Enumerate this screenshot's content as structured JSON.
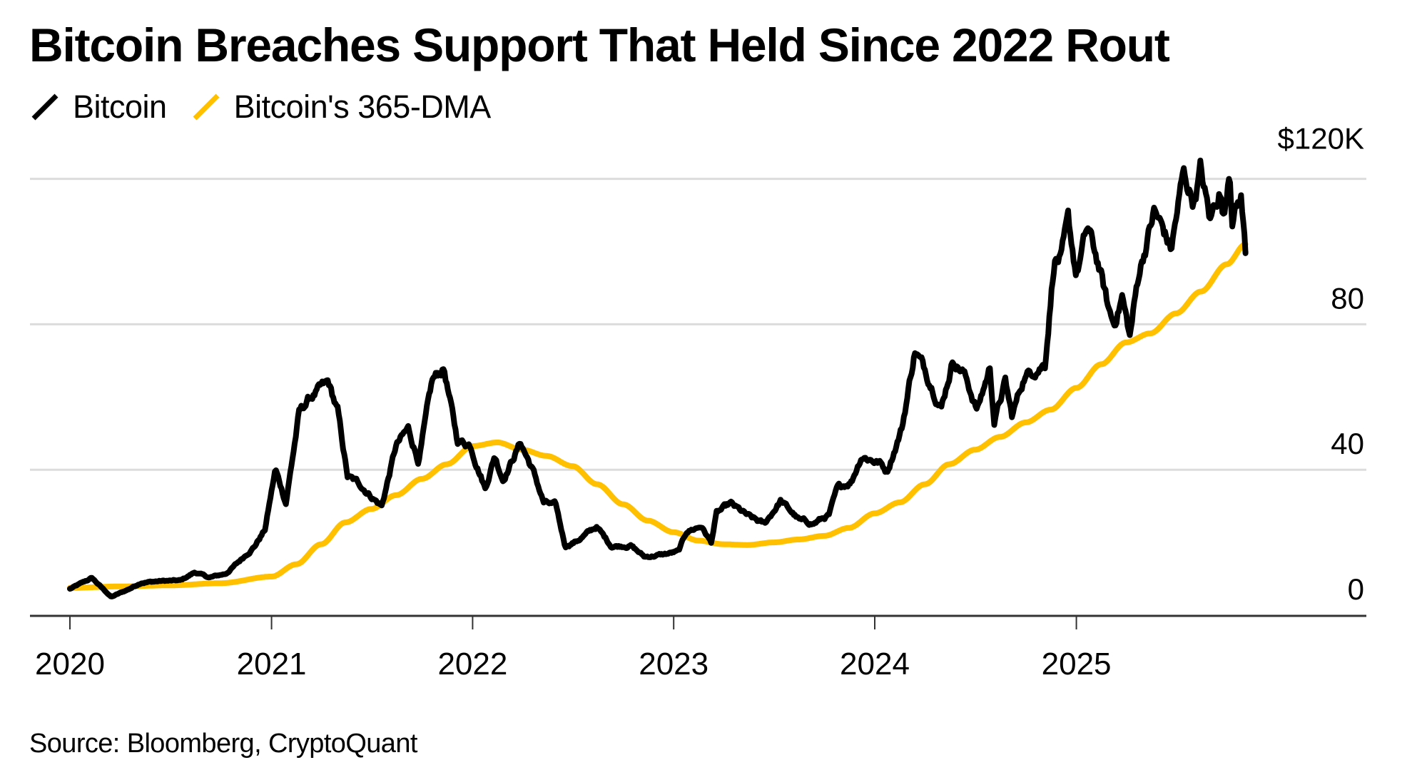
{
  "chart_data": {
    "type": "line",
    "title": "Bitcoin Breaches Support That Held Since 2022 Rout",
    "source": "Source: Bloomberg, CryptoQuant",
    "xlabel": "",
    "ylabel": "",
    "x_ticks": [
      "2020",
      "2021",
      "2022",
      "2023",
      "2024",
      "2025"
    ],
    "y_ticks": [
      {
        "value": 0,
        "label": "0"
      },
      {
        "value": 40,
        "label": "40"
      },
      {
        "value": 80,
        "label": "80"
      },
      {
        "value": 120,
        "label": "$120K"
      }
    ],
    "ylim": [
      0,
      120
    ],
    "y_unit": "thousand USD",
    "xlim": [
      "2020-01-01",
      "2026-03-01"
    ],
    "grid": "horizontal",
    "legend_position": "top-left",
    "series": [
      {
        "name": "Bitcoin",
        "color": "#000000",
        "x": [
          "2020-01-01",
          "2020-02-10",
          "2020-03-16",
          "2020-04-15",
          "2020-05-10",
          "2020-06-15",
          "2020-07-20",
          "2020-08-15",
          "2020-09-10",
          "2020-10-10",
          "2020-11-05",
          "2020-12-01",
          "2020-12-20",
          "2021-01-08",
          "2021-01-27",
          "2021-02-20",
          "2021-03-13",
          "2021-04-14",
          "2021-05-01",
          "2021-05-19",
          "2021-06-10",
          "2021-07-20",
          "2021-08-15",
          "2021-09-06",
          "2021-09-25",
          "2021-10-20",
          "2021-11-10",
          "2021-12-04",
          "2021-12-28",
          "2022-01-24",
          "2022-02-10",
          "2022-02-25",
          "2022-03-29",
          "2022-04-20",
          "2022-05-10",
          "2022-06-01",
          "2022-06-18",
          "2022-07-10",
          "2022-08-14",
          "2022-09-10",
          "2022-10-15",
          "2022-11-09",
          "2022-12-15",
          "2023-01-10",
          "2023-01-25",
          "2023-02-20",
          "2023-03-10",
          "2023-03-20",
          "2023-04-14",
          "2023-05-20",
          "2023-06-15",
          "2023-07-14",
          "2023-08-18",
          "2023-09-11",
          "2023-10-10",
          "2023-10-25",
          "2023-11-20",
          "2023-12-08",
          "2024-01-10",
          "2024-01-23",
          "2024-02-20",
          "2024-03-14",
          "2024-04-15",
          "2024-05-01",
          "2024-05-22",
          "2024-06-10",
          "2024-07-05",
          "2024-07-28",
          "2024-08-05",
          "2024-08-25",
          "2024-09-06",
          "2024-09-28",
          "2024-10-20",
          "2024-11-05",
          "2024-11-22",
          "2024-12-05",
          "2024-12-17",
          "2025-01-01",
          "2025-01-21",
          "2025-02-10",
          "2025-02-28",
          "2025-03-10",
          "2025-03-25",
          "2025-04-08",
          "2025-04-25",
          "2025-05-22",
          "2025-06-10",
          "2025-06-22",
          "2025-07-14",
          "2025-08-02",
          "2025-08-14",
          "2025-09-01",
          "2025-09-18",
          "2025-09-26",
          "2025-10-06",
          "2025-10-11",
          "2025-10-27",
          "2025-11-04"
        ],
        "values": [
          7.2,
          10.2,
          5.0,
          7.0,
          9.0,
          9.4,
          9.5,
          11.8,
          10.3,
          11.4,
          15.0,
          19.0,
          23.5,
          40.0,
          31.0,
          55.5,
          60.0,
          63.5,
          56.0,
          38.0,
          36.0,
          30.0,
          46.5,
          51.0,
          42.5,
          64.0,
          68.0,
          48.0,
          47.0,
          35.0,
          44.0,
          37.5,
          47.5,
          40.0,
          31.0,
          30.0,
          19.0,
          20.5,
          24.3,
          19.0,
          19.2,
          16.0,
          16.7,
          17.5,
          23.0,
          24.5,
          20.0,
          28.0,
          30.5,
          26.8,
          25.0,
          31.5,
          26.0,
          25.2,
          27.5,
          34.5,
          37.0,
          44.0,
          42.0,
          39.5,
          52.0,
          73.0,
          63.0,
          57.5,
          70.5,
          67.0,
          56.5,
          68.0,
          53.5,
          64.0,
          54.5,
          65.5,
          68.0,
          69.5,
          98.5,
          98.0,
          107.0,
          93.5,
          106.0,
          96.5,
          84.0,
          80.0,
          88.0,
          76.5,
          94.5,
          111.0,
          105.0,
          100.5,
          121.0,
          114.0,
          122.5,
          108.0,
          117.5,
          109.0,
          124.5,
          111.0,
          115.0,
          100.0
        ]
      },
      {
        "name": "Bitcoin's 365-DMA",
        "color": "#FFC000",
        "x": [
          "2020-01-01",
          "2020-04-01",
          "2020-07-01",
          "2020-10-01",
          "2021-01-01",
          "2021-02-15",
          "2021-04-01",
          "2021-05-15",
          "2021-07-01",
          "2021-08-15",
          "2021-10-01",
          "2021-11-15",
          "2022-01-01",
          "2022-02-15",
          "2022-04-01",
          "2022-05-15",
          "2022-07-01",
          "2022-08-15",
          "2022-10-01",
          "2022-11-15",
          "2023-01-01",
          "2023-02-15",
          "2023-04-01",
          "2023-05-15",
          "2023-07-01",
          "2023-08-15",
          "2023-10-01",
          "2023-11-15",
          "2024-01-01",
          "2024-02-15",
          "2024-04-01",
          "2024-05-15",
          "2024-07-01",
          "2024-08-15",
          "2024-10-01",
          "2024-11-15",
          "2025-01-01",
          "2025-02-15",
          "2025-04-01",
          "2025-05-15",
          "2025-07-01",
          "2025-08-15",
          "2025-10-01",
          "2025-11-04"
        ],
        "values": [
          7.5,
          7.9,
          8.2,
          8.8,
          10.6,
          14.0,
          19.5,
          25.5,
          29.2,
          33.0,
          37.5,
          41.5,
          46.5,
          47.5,
          45.5,
          43.8,
          41.0,
          36.0,
          30.5,
          26.0,
          22.8,
          20.5,
          19.5,
          19.3,
          20.0,
          20.8,
          21.8,
          24.0,
          28.0,
          31.0,
          36.0,
          41.5,
          45.5,
          49.0,
          53.0,
          56.5,
          62.5,
          69.0,
          75.0,
          77.5,
          83.0,
          89.0,
          96.5,
          102.0
        ]
      }
    ]
  },
  "legend": {
    "items": [
      {
        "label": "Bitcoin",
        "color": "#000000"
      },
      {
        "label": "Bitcoin's 365-DMA",
        "color": "#FFC000"
      }
    ]
  },
  "colors": {
    "gridline": "#dcdcdc",
    "axis": "#333333"
  }
}
